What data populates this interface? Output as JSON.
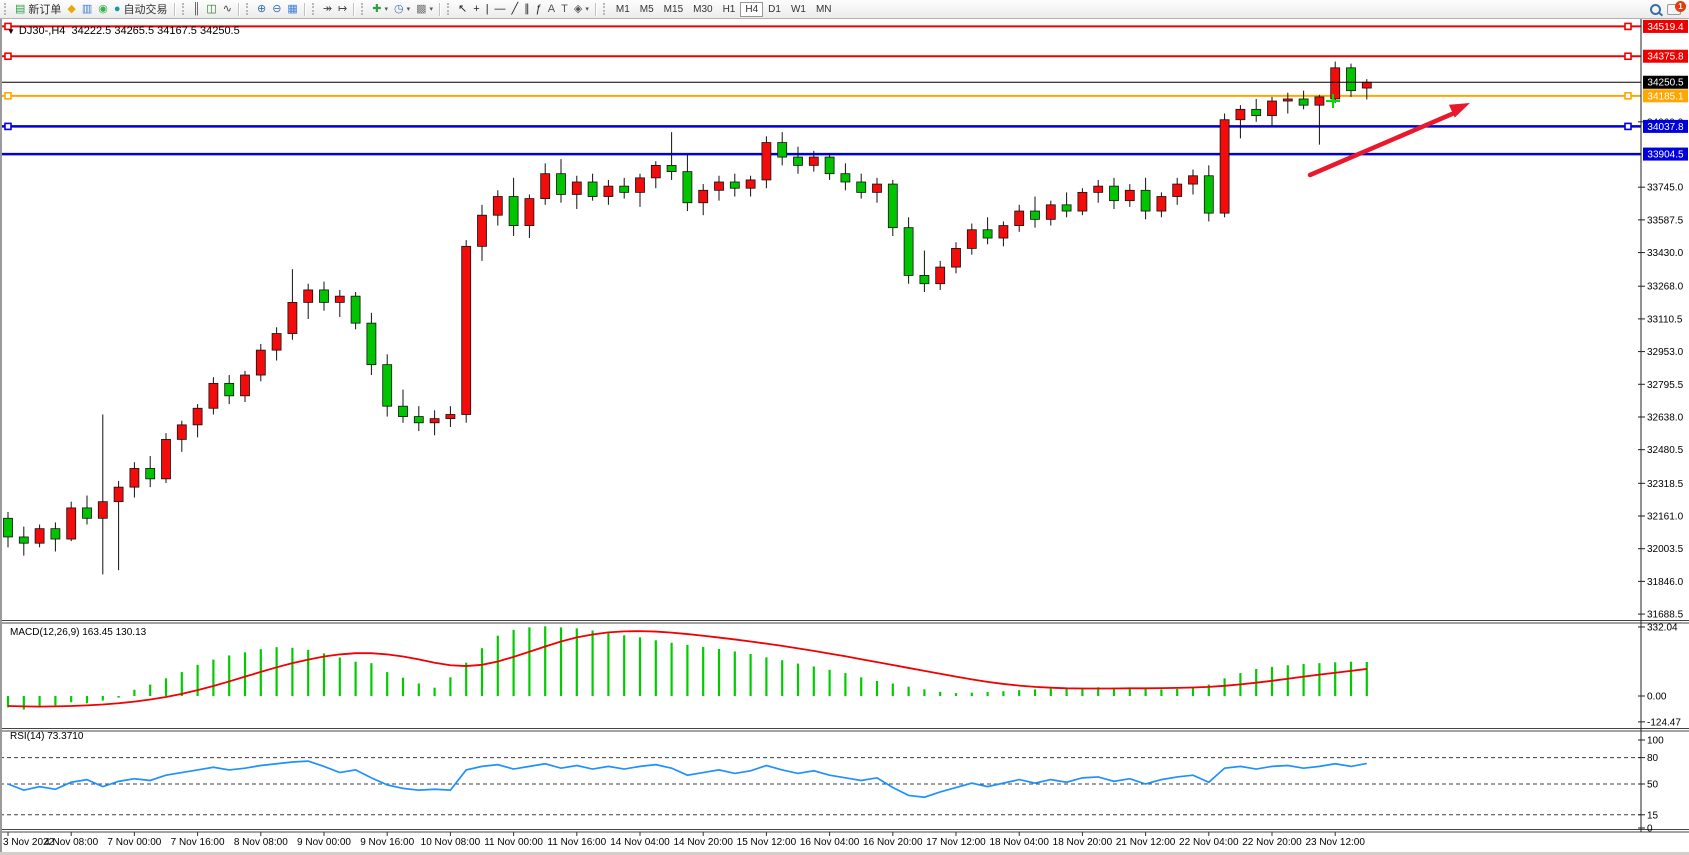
{
  "toolbar": {
    "new_order_label": "新订单",
    "autotrading_label": "自动交易",
    "groups": [
      {
        "name": "trade",
        "items": [
          {
            "name": "new-order-button",
            "glyph": "▤",
            "color": "#2f9e44",
            "label_key": "new_order"
          },
          {
            "name": "gold-ingot-icon",
            "glyph": "◆",
            "color": "#e3aa0b"
          },
          {
            "name": "monitor-icon",
            "glyph": "▥",
            "color": "#3b7bd4"
          },
          {
            "name": "signal-icon",
            "glyph": "◉",
            "color": "#37b24d"
          },
          {
            "name": "autotrading-button",
            "glyph": "●",
            "color": "#0f9ea8",
            "label_key": "autotrading"
          }
        ]
      },
      {
        "name": "chart-type",
        "items": [
          {
            "name": "bar-chart-icon",
            "glyph": "║",
            "color": "#444"
          },
          {
            "name": "candlestick-chart-icon",
            "glyph": "◫",
            "color": "#2a7a2a"
          },
          {
            "name": "line-chart-icon",
            "glyph": "∿",
            "color": "#444"
          }
        ]
      },
      {
        "name": "zoom",
        "items": [
          {
            "name": "zoom-in-icon",
            "glyph": "⊕",
            "color": "#3a6ea5"
          },
          {
            "name": "zoom-out-icon",
            "glyph": "⊖",
            "color": "#3a6ea5"
          },
          {
            "name": "tile-windows-icon",
            "glyph": "▦",
            "color": "#3b7bd4"
          }
        ]
      },
      {
        "name": "scroll",
        "items": [
          {
            "name": "auto-scroll-icon",
            "glyph": "↠",
            "color": "#444"
          },
          {
            "name": "chart-shift-icon",
            "glyph": "↦",
            "color": "#444"
          }
        ]
      },
      {
        "name": "objects",
        "items": [
          {
            "name": "add-indicator-icon",
            "glyph": "✚",
            "color": "#2f9e44",
            "caret": true
          },
          {
            "name": "periods-clock-icon",
            "glyph": "◷",
            "color": "#3a6ea5",
            "caret": true
          },
          {
            "name": "template-icon",
            "glyph": "▩",
            "color": "#777",
            "caret": true
          }
        ]
      },
      {
        "name": "drawing",
        "items": [
          {
            "name": "cursor-icon",
            "glyph": "↖",
            "color": "#222"
          },
          {
            "name": "crosshair-icon",
            "glyph": "+",
            "color": "#222"
          },
          {
            "name": "vertical-line-icon",
            "glyph": "|",
            "color": "#222"
          },
          {
            "name": "horizontal-line-icon",
            "glyph": "—",
            "color": "#222"
          },
          {
            "name": "trendline-icon",
            "glyph": "╱",
            "color": "#222"
          },
          {
            "name": "equidistant-channel-icon",
            "glyph": "∥",
            "color": "#222"
          },
          {
            "name": "fibonacci-icon",
            "glyph": "ƒ",
            "color": "#222"
          },
          {
            "name": "text-icon",
            "glyph": "A",
            "color": "#555"
          },
          {
            "name": "text-label-icon",
            "glyph": "T",
            "color": "#555"
          },
          {
            "name": "arrows-object-icon",
            "glyph": "◈",
            "color": "#555",
            "caret": true
          }
        ]
      }
    ],
    "timeframes": [
      "M1",
      "M5",
      "M15",
      "M30",
      "H1",
      "H4",
      "D1",
      "W1",
      "MN"
    ],
    "active_timeframe": "H4",
    "notification_count": "1"
  },
  "title": {
    "symbol_period": "DJ30-,H4",
    "ohlc": "34222.5 34265.5 34167.5 34250.5"
  },
  "chart_data": {
    "type": "candlestick",
    "symbol": "DJ30-",
    "period": "H4",
    "current_bar": {
      "open": 34222.5,
      "high": 34265.5,
      "low": 34167.5,
      "close": 34250.5
    },
    "up_color": "#f20c0c",
    "down_color": "#00c400",
    "ylim": [
      31660,
      34560
    ],
    "price_ticks": [
      "34060.0",
      "33745.0",
      "33587.5",
      "33430.0",
      "33268.0",
      "33110.5",
      "32953.0",
      "32795.5",
      "32638.0",
      "32480.5",
      "32318.5",
      "32161.0",
      "32003.5",
      "31846.0",
      "31688.5"
    ],
    "x_labels": [
      "3 Nov 2022",
      "4 Nov 08:00",
      "7 Nov 00:00",
      "7 Nov 16:00",
      "8 Nov 08:00",
      "9 Nov 00:00",
      "9 Nov 16:00",
      "10 Nov 08:00",
      "11 Nov 00:00",
      "11 Nov 16:00",
      "14 Nov 04:00",
      "14 Nov 20:00",
      "15 Nov 12:00",
      "16 Nov 04:00",
      "16 Nov 20:00",
      "17 Nov 12:00",
      "18 Nov 04:00",
      "18 Nov 20:00",
      "21 Nov 12:00",
      "22 Nov 04:00",
      "22 Nov 20:00",
      "23 Nov 12:00"
    ],
    "label_every_n_candles": 4,
    "candles": [
      [
        32150,
        32180,
        32010,
        32060
      ],
      [
        32060,
        32110,
        31970,
        32030
      ],
      [
        32030,
        32120,
        32010,
        32100
      ],
      [
        32100,
        32130,
        31990,
        32050
      ],
      [
        32050,
        32230,
        32040,
        32200
      ],
      [
        32200,
        32260,
        32120,
        32150
      ],
      [
        32150,
        32650,
        31880,
        32230
      ],
      [
        32230,
        32330,
        31900,
        32300
      ],
      [
        32300,
        32420,
        32250,
        32390
      ],
      [
        32390,
        32450,
        32300,
        32340
      ],
      [
        32340,
        32560,
        32320,
        32530
      ],
      [
        32530,
        32620,
        32470,
        32600
      ],
      [
        32600,
        32700,
        32540,
        32680
      ],
      [
        32680,
        32830,
        32650,
        32800
      ],
      [
        32800,
        32840,
        32700,
        32740
      ],
      [
        32740,
        32860,
        32710,
        32840
      ],
      [
        32840,
        32990,
        32810,
        32960
      ],
      [
        32960,
        33070,
        32910,
        33040
      ],
      [
        33040,
        33350,
        33010,
        33190
      ],
      [
        33190,
        33280,
        33110,
        33250
      ],
      [
        33250,
        33290,
        33150,
        33190
      ],
      [
        33190,
        33250,
        33120,
        33220
      ],
      [
        33220,
        33240,
        33060,
        33090
      ],
      [
        33090,
        33140,
        32840,
        32890
      ],
      [
        32890,
        32940,
        32640,
        32690
      ],
      [
        32690,
        32770,
        32610,
        32640
      ],
      [
        32640,
        32690,
        32570,
        32610
      ],
      [
        32610,
        32670,
        32550,
        32630
      ],
      [
        32630,
        32690,
        32590,
        32650
      ],
      [
        32650,
        33490,
        32610,
        33460
      ],
      [
        33460,
        33660,
        33390,
        33610
      ],
      [
        33610,
        33730,
        33560,
        33700
      ],
      [
        33700,
        33790,
        33510,
        33560
      ],
      [
        33560,
        33710,
        33500,
        33690
      ],
      [
        33690,
        33860,
        33660,
        33810
      ],
      [
        33810,
        33880,
        33670,
        33710
      ],
      [
        33710,
        33800,
        33640,
        33770
      ],
      [
        33770,
        33810,
        33680,
        33700
      ],
      [
        33700,
        33780,
        33660,
        33750
      ],
      [
        33750,
        33790,
        33690,
        33720
      ],
      [
        33720,
        33810,
        33650,
        33790
      ],
      [
        33790,
        33870,
        33740,
        33850
      ],
      [
        33850,
        34010,
        33780,
        33820
      ],
      [
        33820,
        33900,
        33630,
        33670
      ],
      [
        33670,
        33760,
        33610,
        33730
      ],
      [
        33730,
        33800,
        33680,
        33770
      ],
      [
        33770,
        33810,
        33700,
        33740
      ],
      [
        33740,
        33800,
        33700,
        33780
      ],
      [
        33780,
        33990,
        33740,
        33960
      ],
      [
        33960,
        34010,
        33850,
        33890
      ],
      [
        33890,
        33940,
        33810,
        33850
      ],
      [
        33850,
        33920,
        33820,
        33890
      ],
      [
        33890,
        33910,
        33780,
        33810
      ],
      [
        33810,
        33860,
        33730,
        33770
      ],
      [
        33770,
        33810,
        33690,
        33720
      ],
      [
        33720,
        33790,
        33670,
        33760
      ],
      [
        33760,
        33780,
        33510,
        33550
      ],
      [
        33550,
        33600,
        33280,
        33320
      ],
      [
        33320,
        33440,
        33240,
        33280
      ],
      [
        33280,
        33390,
        33250,
        33360
      ],
      [
        33360,
        33480,
        33330,
        33450
      ],
      [
        33450,
        33570,
        33420,
        33540
      ],
      [
        33540,
        33600,
        33470,
        33500
      ],
      [
        33500,
        33580,
        33460,
        33560
      ],
      [
        33560,
        33660,
        33530,
        33630
      ],
      [
        33630,
        33700,
        33550,
        33590
      ],
      [
        33590,
        33680,
        33560,
        33660
      ],
      [
        33660,
        33720,
        33600,
        33630
      ],
      [
        33630,
        33740,
        33610,
        33720
      ],
      [
        33720,
        33780,
        33670,
        33750
      ],
      [
        33750,
        33790,
        33640,
        33680
      ],
      [
        33680,
        33760,
        33650,
        33730
      ],
      [
        33730,
        33790,
        33590,
        33630
      ],
      [
        33630,
        33720,
        33600,
        33700
      ],
      [
        33700,
        33790,
        33660,
        33760
      ],
      [
        33760,
        33830,
        33710,
        33800
      ],
      [
        33800,
        33850,
        33580,
        33620
      ],
      [
        33620,
        34100,
        33600,
        34070
      ],
      [
        34070,
        34140,
        33980,
        34120
      ],
      [
        34120,
        34170,
        34060,
        34090
      ],
      [
        34090,
        34180,
        34040,
        34160
      ],
      [
        34160,
        34200,
        34100,
        34170
      ],
      [
        34170,
        34210,
        34120,
        34140
      ],
      [
        34140,
        34190,
        33950,
        34180
      ],
      [
        34170,
        34350,
        34150,
        34320
      ],
      [
        34320,
        34340,
        34180,
        34210
      ],
      [
        34222.5,
        34265.5,
        34167.5,
        34250.5
      ]
    ],
    "hlines": [
      {
        "price": 34519.4,
        "color": "#ee0000",
        "width": 2,
        "handles": true,
        "label": "34519.4"
      },
      {
        "price": 34375.8,
        "color": "#ee0000",
        "width": 2,
        "handles": true,
        "label": "34375.8"
      },
      {
        "price": 34185.1,
        "color": "#ffa600",
        "width": 2,
        "handles": true,
        "label": "34185.1"
      },
      {
        "price": 34037.8,
        "color": "#0000dd",
        "width": 2.5,
        "handles": true,
        "label": "34037.8"
      },
      {
        "price": 33904.5,
        "color": "#0000dd",
        "width": 2.5,
        "handles": false,
        "label": "33904.5"
      }
    ],
    "current_price_line": {
      "price": 34250.5,
      "color": "#000000",
      "label": "34250.5"
    },
    "annotations": {
      "trend_arrow": {
        "color": "#e8192c",
        "from_price": 33800,
        "to_price": 34150,
        "note": "up-right red arrow over last candles"
      },
      "cross_marker": {
        "color": "#00dd00",
        "price": 34160,
        "near_bar_index": 83
      }
    },
    "macd": {
      "name": "MACD(12,26,9)",
      "values_label": "163.45 130.13",
      "full_label": "MACD(12,26,9) 163.45 130.13",
      "main_value": 163.45,
      "signal_value": 130.13,
      "ticks": [
        "332.04",
        "0.00",
        "-124.47"
      ],
      "histogram_color": "#00cc00",
      "signal_color": "#f00000",
      "histogram": [
        -55,
        -65,
        -52,
        -45,
        -30,
        -35,
        -22,
        -8,
        30,
        55,
        85,
        115,
        150,
        175,
        195,
        210,
        225,
        235,
        232,
        222,
        205,
        185,
        165,
        158,
        115,
        88,
        60,
        40,
        90,
        160,
        230,
        290,
        318,
        330,
        335,
        330,
        325,
        315,
        302,
        292,
        282,
        268,
        256,
        246,
        236,
        226,
        214,
        202,
        186,
        172,
        156,
        142,
        126,
        110,
        90,
        72,
        60,
        45,
        32,
        20,
        14,
        16,
        19,
        23,
        28,
        32,
        35,
        38,
        40,
        42,
        40,
        38,
        35,
        32,
        34,
        40,
        55,
        85,
        110,
        130,
        140,
        148,
        154,
        158,
        162,
        165,
        163.45
      ],
      "signal": [
        -48,
        -50,
        -51,
        -50,
        -48,
        -45,
        -41,
        -35,
        -27,
        -17,
        -5,
        10,
        28,
        48,
        70,
        93,
        116,
        138,
        158,
        175,
        190,
        200,
        206,
        206,
        200,
        190,
        176,
        160,
        148,
        144,
        150,
        166,
        188,
        213,
        238,
        262,
        282,
        296,
        306,
        311,
        312,
        310,
        305,
        298,
        290,
        281,
        272,
        262,
        252,
        241,
        229,
        217,
        204,
        191,
        177,
        163,
        149,
        135,
        121,
        107,
        93,
        80,
        68,
        58,
        50,
        44,
        40,
        37,
        36,
        36,
        36,
        37,
        37,
        38,
        39,
        41,
        44,
        49,
        56,
        64,
        73,
        83,
        93,
        103,
        112,
        121,
        130.13
      ]
    },
    "rsi": {
      "name": "RSI(14)",
      "value_label": "73.3710",
      "full_label": "RSI(14) 73.3710",
      "value": 73.371,
      "line_color": "#1E90FF",
      "ticks": [
        "100",
        "80",
        "50",
        "15",
        "0"
      ],
      "levels": [
        80,
        50,
        15
      ],
      "values": [
        50,
        43,
        47,
        44,
        52,
        55,
        47,
        53,
        56,
        54,
        60,
        63,
        66,
        69,
        66,
        68,
        71,
        73,
        75,
        76,
        70,
        63,
        66,
        57,
        49,
        45,
        43,
        44,
        43,
        66,
        70,
        72,
        67,
        70,
        73,
        68,
        71,
        67,
        70,
        67,
        70,
        72,
        68,
        60,
        63,
        66,
        62,
        65,
        71,
        66,
        62,
        65,
        60,
        57,
        54,
        57,
        46,
        37,
        35,
        41,
        46,
        51,
        47,
        51,
        55,
        51,
        55,
        52,
        57,
        58,
        53,
        56,
        50,
        55,
        58,
        60,
        52,
        68,
        70,
        67,
        70,
        71,
        68,
        70,
        73,
        70,
        73.37
      ]
    }
  }
}
